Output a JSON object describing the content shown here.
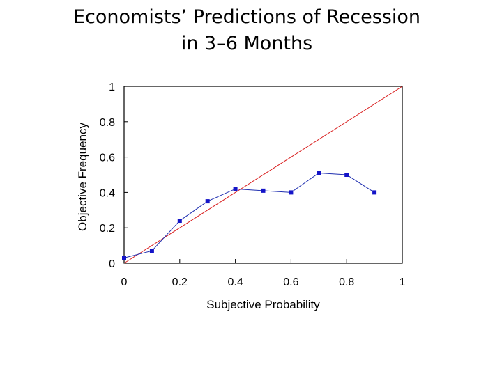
{
  "chart_data": {
    "type": "line",
    "title_lines": [
      "Economists’ Predictions of Recession",
      "in 3–6 Months"
    ],
    "xlabel": "Subjective Probability",
    "ylabel": "Objective Frequency",
    "xlim": [
      0,
      1
    ],
    "ylim": [
      0,
      1
    ],
    "xticks": [
      0,
      0.2,
      0.4,
      0.6,
      0.8,
      1
    ],
    "xtick_labels": [
      "0",
      "0.2",
      "0.4",
      "0.6",
      "0.8",
      "1"
    ],
    "yticks": [
      0,
      0.2,
      0.4,
      0.6,
      0.8,
      1
    ],
    "ytick_labels": [
      "0",
      "0.2",
      "0.4",
      "0.6",
      "0.8",
      "1"
    ],
    "grid": false,
    "legend": "none",
    "reference_line": {
      "from": [
        0,
        0
      ],
      "to": [
        1,
        1
      ],
      "color": "#d92020"
    },
    "series": [
      {
        "color": "#1f2fb0",
        "marker_color": "#1414c8",
        "x": [
          0.0,
          0.1,
          0.2,
          0.3,
          0.4,
          0.5,
          0.6,
          0.7,
          0.8,
          0.9
        ],
        "y": [
          0.03,
          0.07,
          0.24,
          0.35,
          0.42,
          0.41,
          0.4,
          0.51,
          0.5,
          0.4
        ]
      }
    ]
  }
}
